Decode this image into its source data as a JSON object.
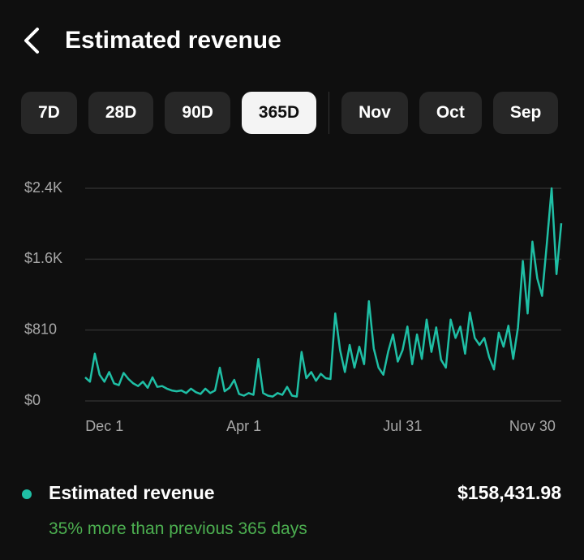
{
  "header": {
    "title": "Estimated revenue"
  },
  "tabs": [
    {
      "label": "7D",
      "selected": false
    },
    {
      "label": "28D",
      "selected": false
    },
    {
      "label": "90D",
      "selected": false
    },
    {
      "label": "365D",
      "selected": true
    },
    {
      "label": "Nov",
      "selected": false
    },
    {
      "label": "Oct",
      "selected": false
    },
    {
      "label": "Sep",
      "selected": false
    }
  ],
  "chart_data": {
    "type": "line",
    "categories": [
      null,
      null,
      null,
      null,
      "Dec 1",
      null,
      null,
      null,
      null,
      null,
      null,
      null,
      null,
      null,
      null,
      null,
      null,
      null,
      null,
      null,
      null,
      null,
      null,
      null,
      null,
      null,
      null,
      null,
      null,
      null,
      null,
      null,
      null,
      "Apr 1",
      null,
      null,
      null,
      null,
      null,
      null,
      null,
      null,
      null,
      null,
      null,
      null,
      null,
      null,
      null,
      null,
      null,
      null,
      null,
      null,
      null,
      null,
      null,
      null,
      null,
      null,
      null,
      null,
      null,
      null,
      null,
      null,
      "Jul 31",
      null,
      null,
      null,
      null,
      null,
      null,
      null,
      null,
      null,
      null,
      null,
      null,
      null,
      null,
      null,
      null,
      null,
      null,
      null,
      null,
      null,
      null,
      null,
      null,
      null,
      null,
      "Nov 30",
      null,
      null,
      null,
      null,
      null,
      null
    ],
    "series": [
      {
        "name": "Estimated revenue",
        "color": "#1fbfa5",
        "values": [
          270,
          220,
          540,
          300,
          220,
          330,
          200,
          180,
          320,
          250,
          200,
          170,
          220,
          150,
          270,
          160,
          170,
          140,
          120,
          110,
          120,
          90,
          140,
          100,
          80,
          140,
          90,
          120,
          380,
          110,
          150,
          240,
          80,
          60,
          90,
          70,
          480,
          90,
          60,
          50,
          90,
          70,
          160,
          60,
          50,
          560,
          260,
          330,
          230,
          310,
          260,
          250,
          1000,
          580,
          330,
          640,
          380,
          620,
          420,
          1140,
          600,
          380,
          300,
          560,
          760,
          450,
          580,
          850,
          420,
          760,
          480,
          930,
          560,
          840,
          470,
          380,
          930,
          720,
          850,
          540,
          1010,
          720,
          640,
          720,
          500,
          360,
          780,
          620,
          860,
          480,
          840,
          1600,
          1000,
          1820,
          1400,
          1200,
          1800,
          2430,
          1450,
          2030
        ]
      }
    ],
    "ylim": [
      0,
      2430
    ],
    "yticks": [
      {
        "value": 0,
        "label": "$0"
      },
      {
        "value": 810,
        "label": "$810"
      },
      {
        "value": 1620,
        "label": "$1.6K"
      },
      {
        "value": 2430,
        "label": "$2.4K"
      }
    ],
    "grid": true
  },
  "summary": {
    "total": "$158,431.98",
    "comparison": "35% more than previous 365 days"
  }
}
